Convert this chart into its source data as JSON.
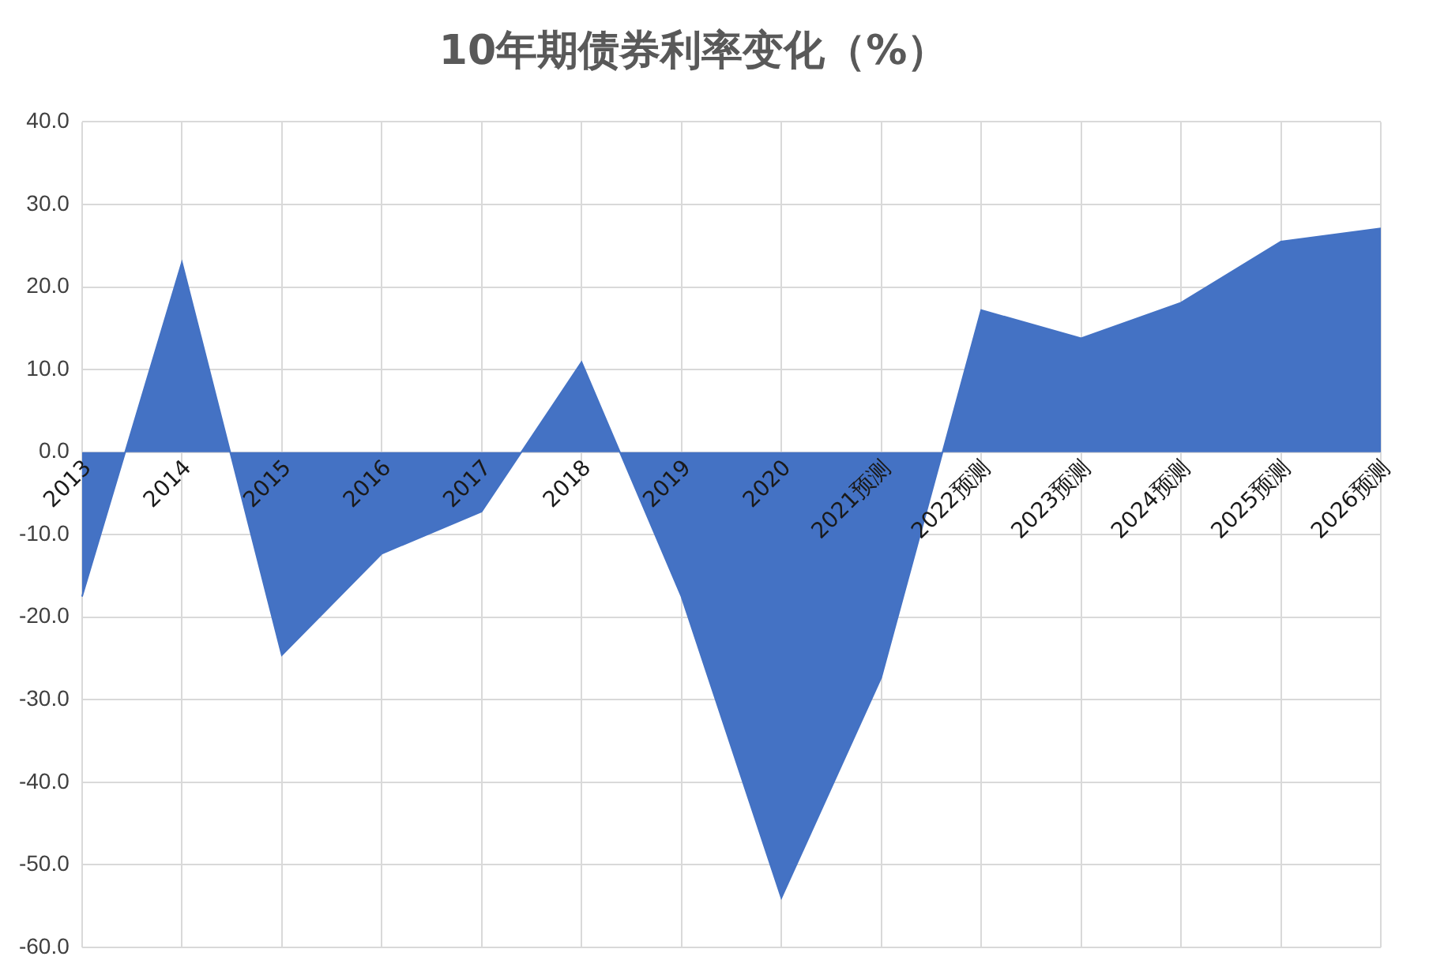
{
  "chart_data": {
    "type": "area",
    "title": "10年期债券利率变化（%）",
    "categories": [
      "2013",
      "2014",
      "2015",
      "2016",
      "2017",
      "2018",
      "2019",
      "2020",
      "2021预测",
      "2022预测",
      "2023预测",
      "2024预测",
      "2025预测",
      "2026预测"
    ],
    "series": [
      {
        "color": "#4472c4",
        "values": [
          -17.5,
          23,
          -24.6,
          -12.3,
          -7.2,
          10.9,
          -17.5,
          -54,
          -27.3,
          17.2,
          13.8,
          18.1,
          25.5,
          27.1
        ]
      }
    ],
    "ylim": [
      -60,
      40
    ],
    "yticks": [
      {
        "value": -60,
        "label": "-60.0"
      },
      {
        "value": -50,
        "label": "-50.0"
      },
      {
        "value": -40,
        "label": "-40.0"
      },
      {
        "value": -30,
        "label": "-30.0"
      },
      {
        "value": -20,
        "label": "-20.0"
      },
      {
        "value": -10,
        "label": "-10.0"
      },
      {
        "value": 0,
        "label": "0.0"
      },
      {
        "value": 10,
        "label": "10.0"
      },
      {
        "value": 20,
        "label": "20.0"
      },
      {
        "value": 30,
        "label": "30.0"
      },
      {
        "value": 40,
        "label": "40.0"
      }
    ],
    "grid": true,
    "legend": false
  }
}
